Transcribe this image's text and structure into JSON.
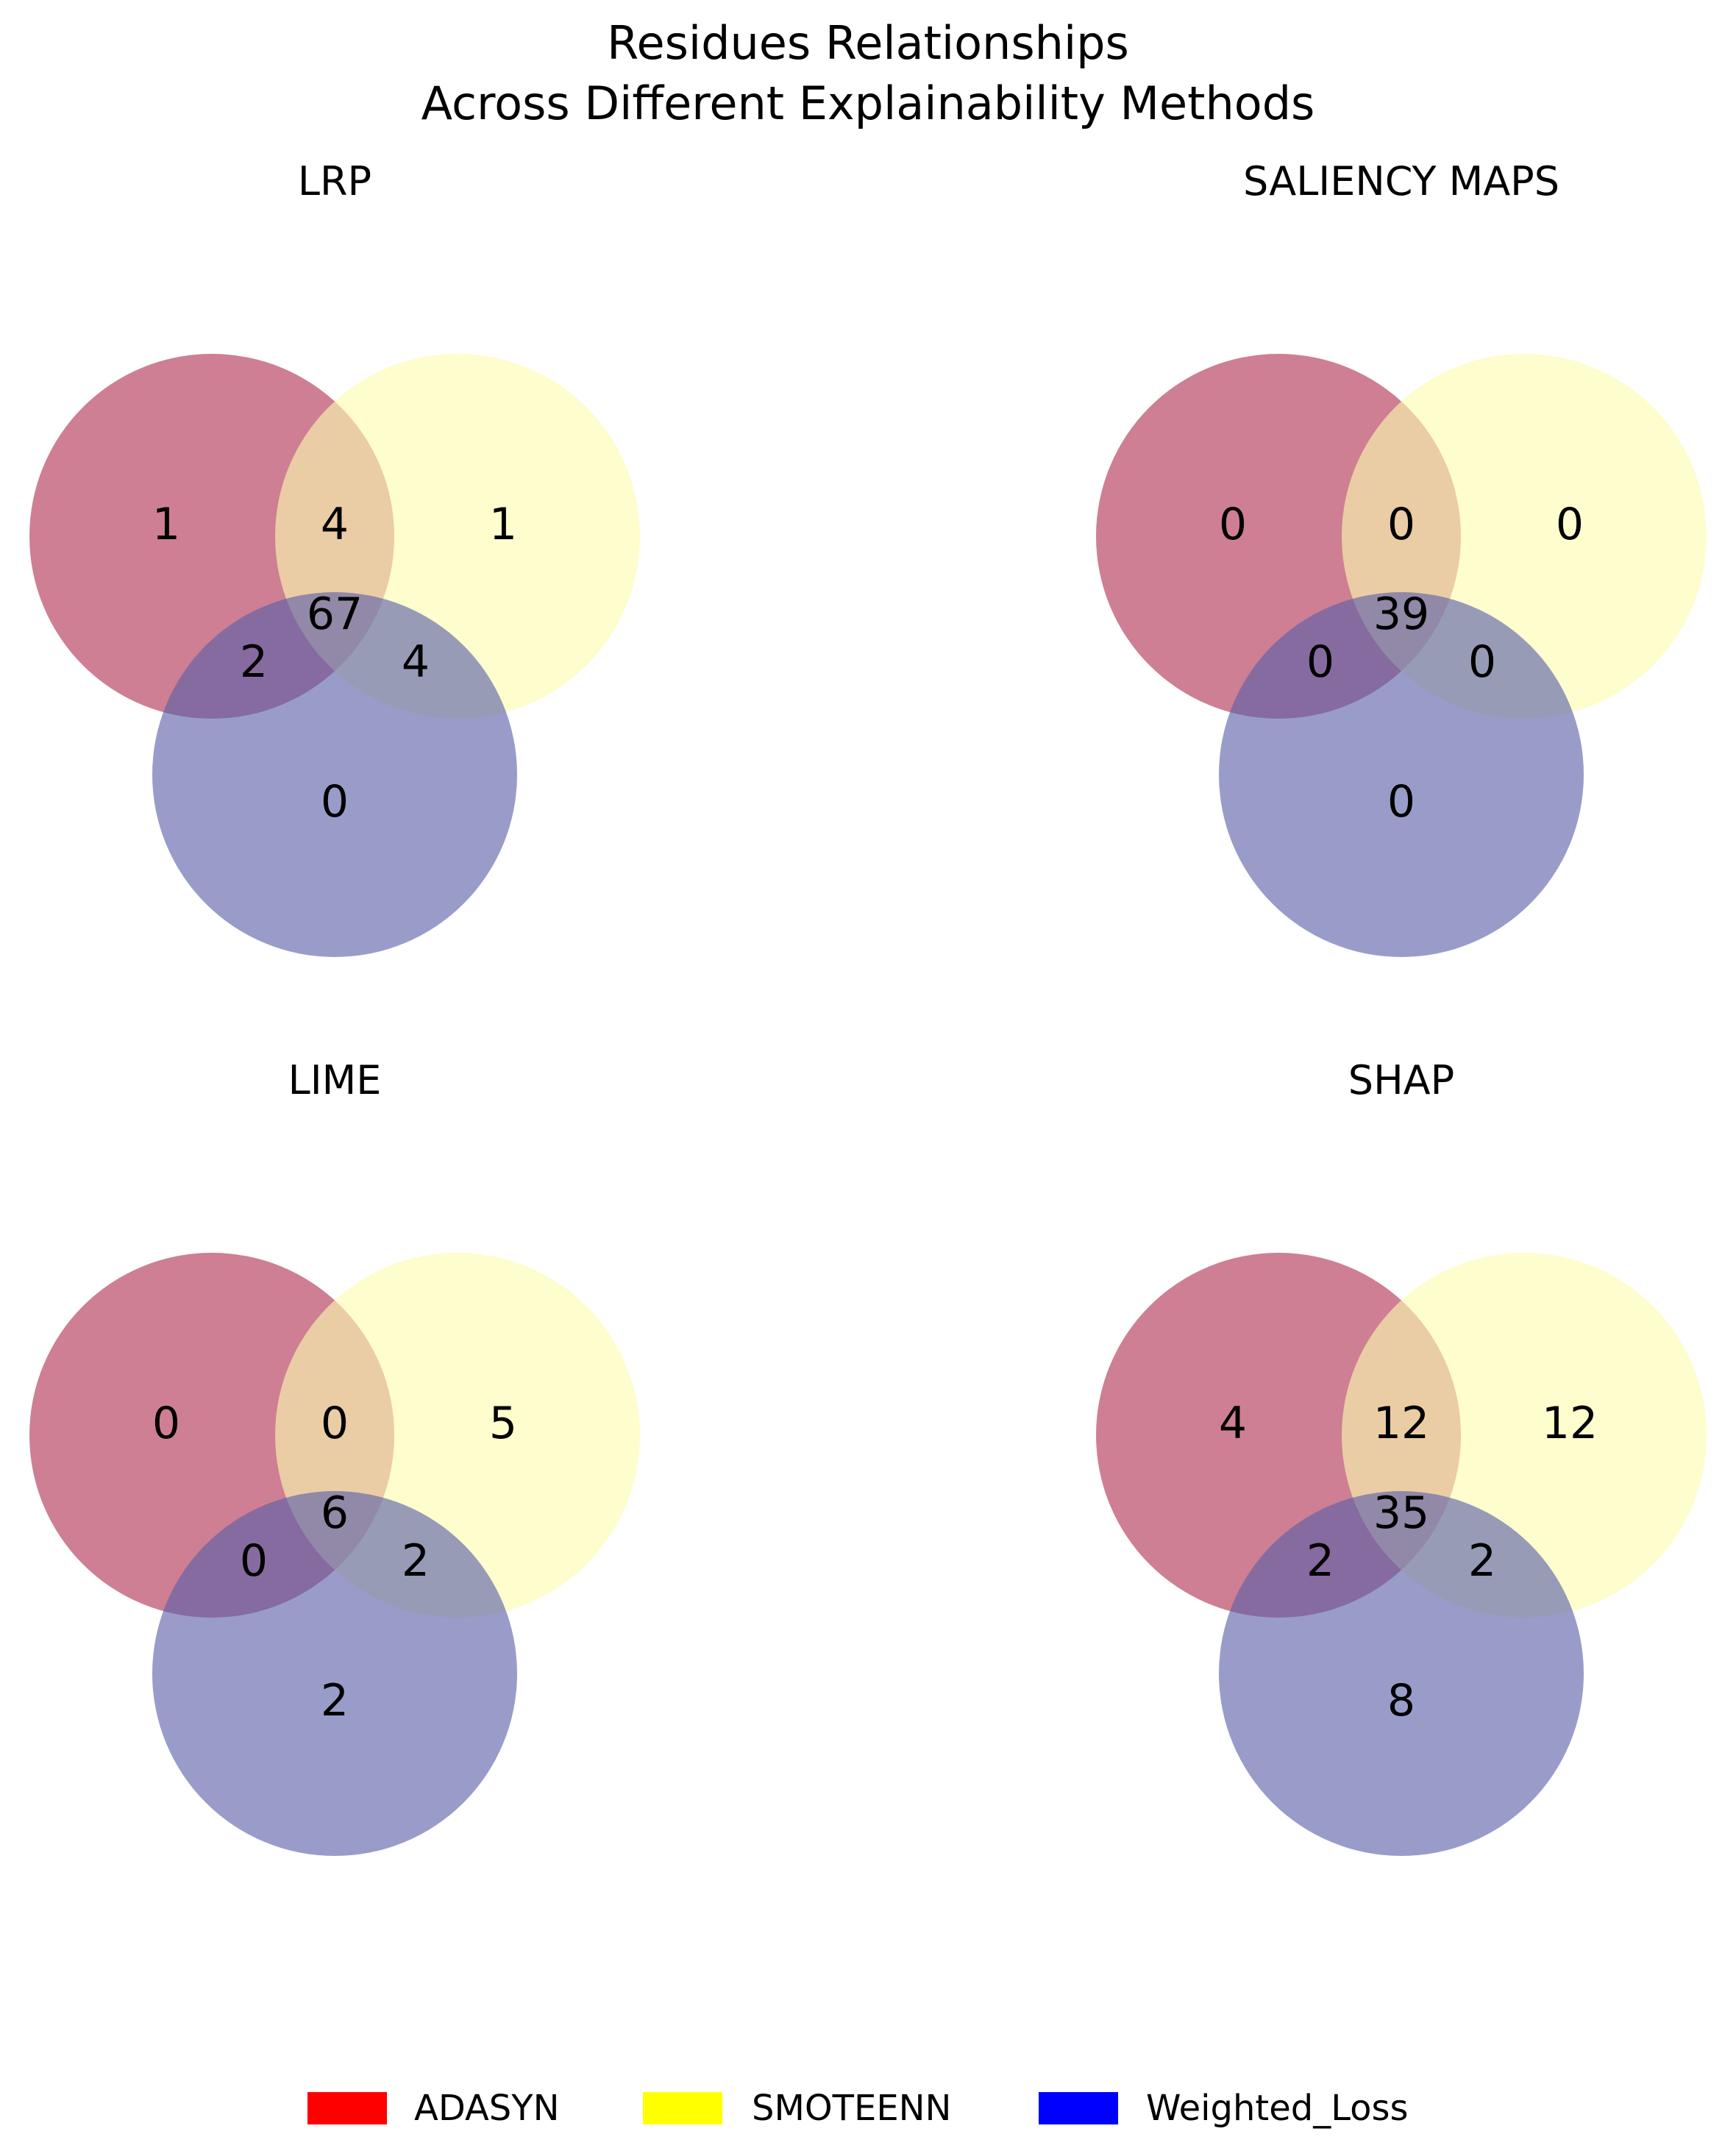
{
  "chart_data": {
    "type": "venn3",
    "title": [
      "Residues Relationships",
      "Across Different Explainability Methods"
    ],
    "sets": [
      "ADASYN",
      "SMOTEENN",
      "Weighted_Loss"
    ],
    "colors": {
      "ADASYN": "#ff0000",
      "SMOTEENN": "#ffff00",
      "Weighted_Loss": "#0000ff",
      "circle_ADASYN": "#b03050",
      "circle_SMOTEENN": "#fbfbb0",
      "circle_Weighted_Loss": "#5a60a8"
    },
    "legend_position": "bottom-center",
    "panels": [
      {
        "title": "LRP",
        "regions": {
          "A_only": 1,
          "B_only": 1,
          "C_only": 0,
          "AB": 4,
          "AC": 2,
          "BC": 4,
          "ABC": 67
        }
      },
      {
        "title": "SALIENCY MAPS",
        "regions": {
          "A_only": 0,
          "B_only": 0,
          "C_only": 0,
          "AB": 0,
          "AC": 0,
          "BC": 0,
          "ABC": 39
        }
      },
      {
        "title": "LIME",
        "regions": {
          "A_only": 0,
          "B_only": 5,
          "C_only": 2,
          "AB": 0,
          "AC": 0,
          "BC": 2,
          "ABC": 6
        }
      },
      {
        "title": "SHAP",
        "regions": {
          "A_only": 4,
          "B_only": 12,
          "C_only": 8,
          "AB": 12,
          "AC": 2,
          "BC": 2,
          "ABC": 35
        }
      }
    ]
  }
}
